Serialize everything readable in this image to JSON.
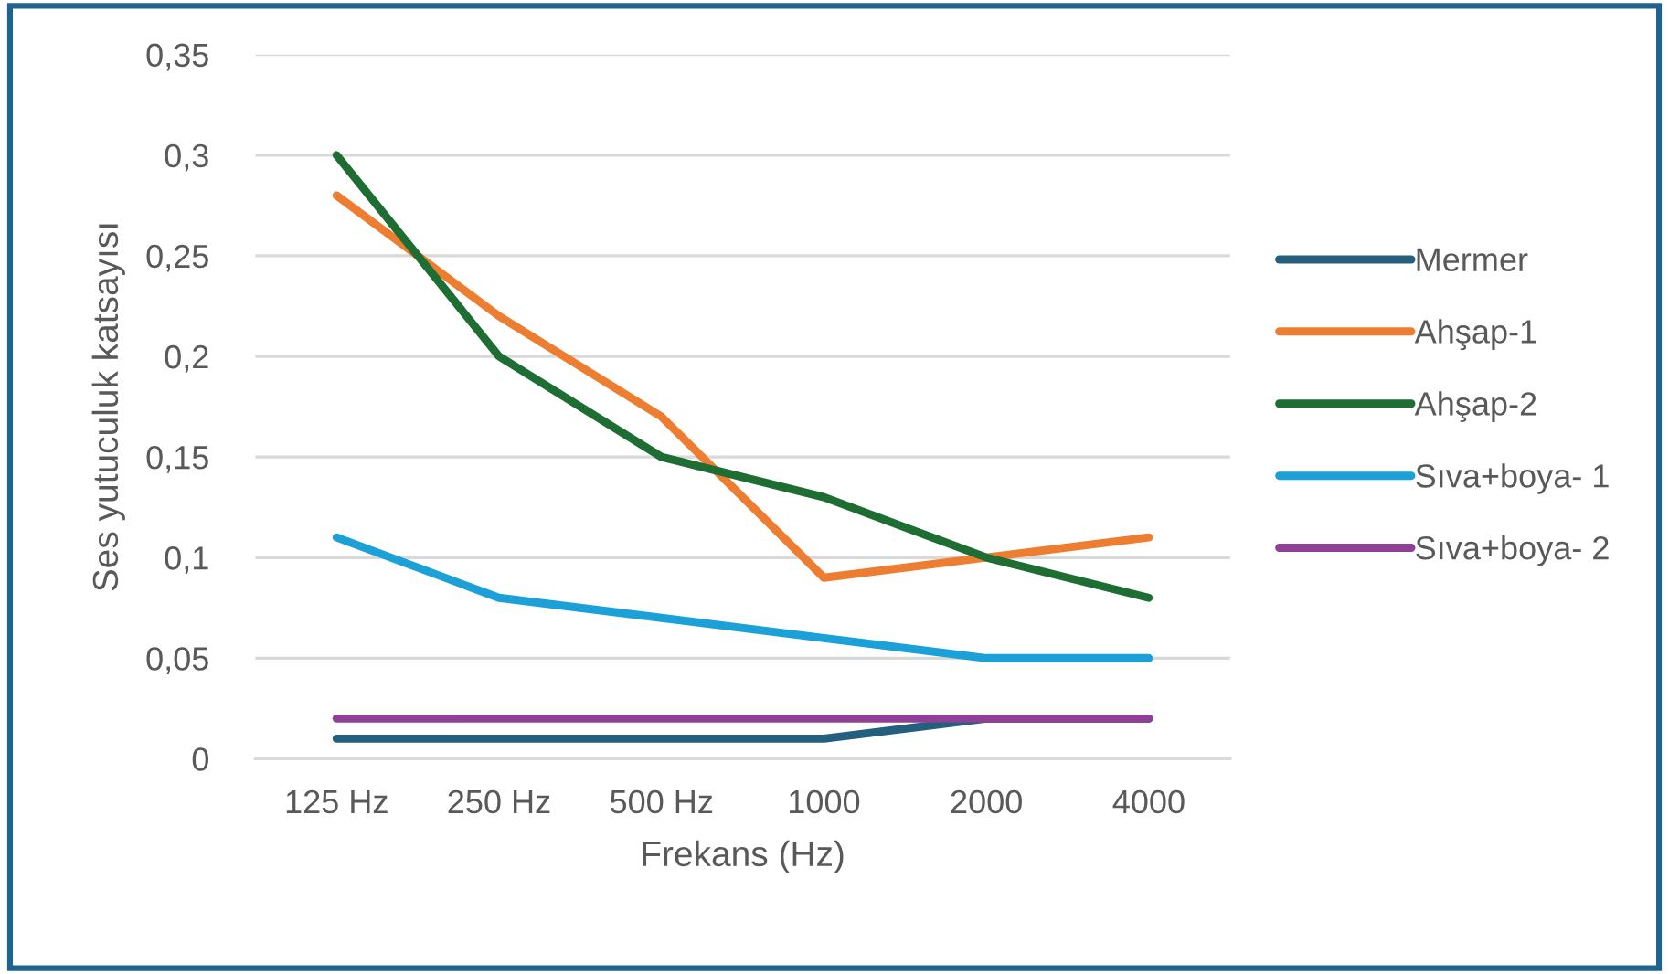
{
  "chart_data": {
    "type": "line",
    "xlabel": "Frekans (Hz)",
    "ylabel": "Ses yutuculuk katsayısı",
    "categories": [
      "125 Hz",
      "250 Hz",
      "500 Hz",
      "1000",
      "2000",
      "4000"
    ],
    "series": [
      {
        "name": "Mermer",
        "color": "#245f7e",
        "values": [
          0.01,
          0.01,
          0.01,
          0.01,
          0.02,
          0.02
        ]
      },
      {
        "name": "Ahşap-1",
        "color": "#ed7d31",
        "values": [
          0.28,
          0.22,
          0.17,
          0.09,
          0.1,
          0.11
        ]
      },
      {
        "name": "Ahşap-2",
        "color": "#1e6e34",
        "values": [
          0.3,
          0.2,
          0.15,
          0.13,
          0.1,
          0.08
        ]
      },
      {
        "name": "Sıva+boya- 1",
        "color": "#1ba1d8",
        "values": [
          0.11,
          0.08,
          0.07,
          0.06,
          0.05,
          0.05
        ]
      },
      {
        "name": "Sıva+boya- 2",
        "color": "#8f3f96",
        "values": [
          0.02,
          0.02,
          0.02,
          0.02,
          0.02,
          0.02
        ]
      }
    ],
    "ylim": [
      0,
      0.35
    ],
    "yticks": [
      0,
      {
        "value": 0.05,
        "label": "0,05"
      },
      {
        "value": 0.1,
        "label": "0,1"
      },
      {
        "value": 0.15,
        "label": "0,15"
      },
      {
        "value": 0.2,
        "label": "0,2"
      },
      {
        "value": 0.25,
        "label": "0,25"
      },
      {
        "value": 0.3,
        "label": "0,3"
      },
      {
        "value": 0.35,
        "label": "0,35"
      }
    ],
    "grid": "y",
    "legend": "right",
    "marker": "none",
    "line_style": "solid"
  }
}
